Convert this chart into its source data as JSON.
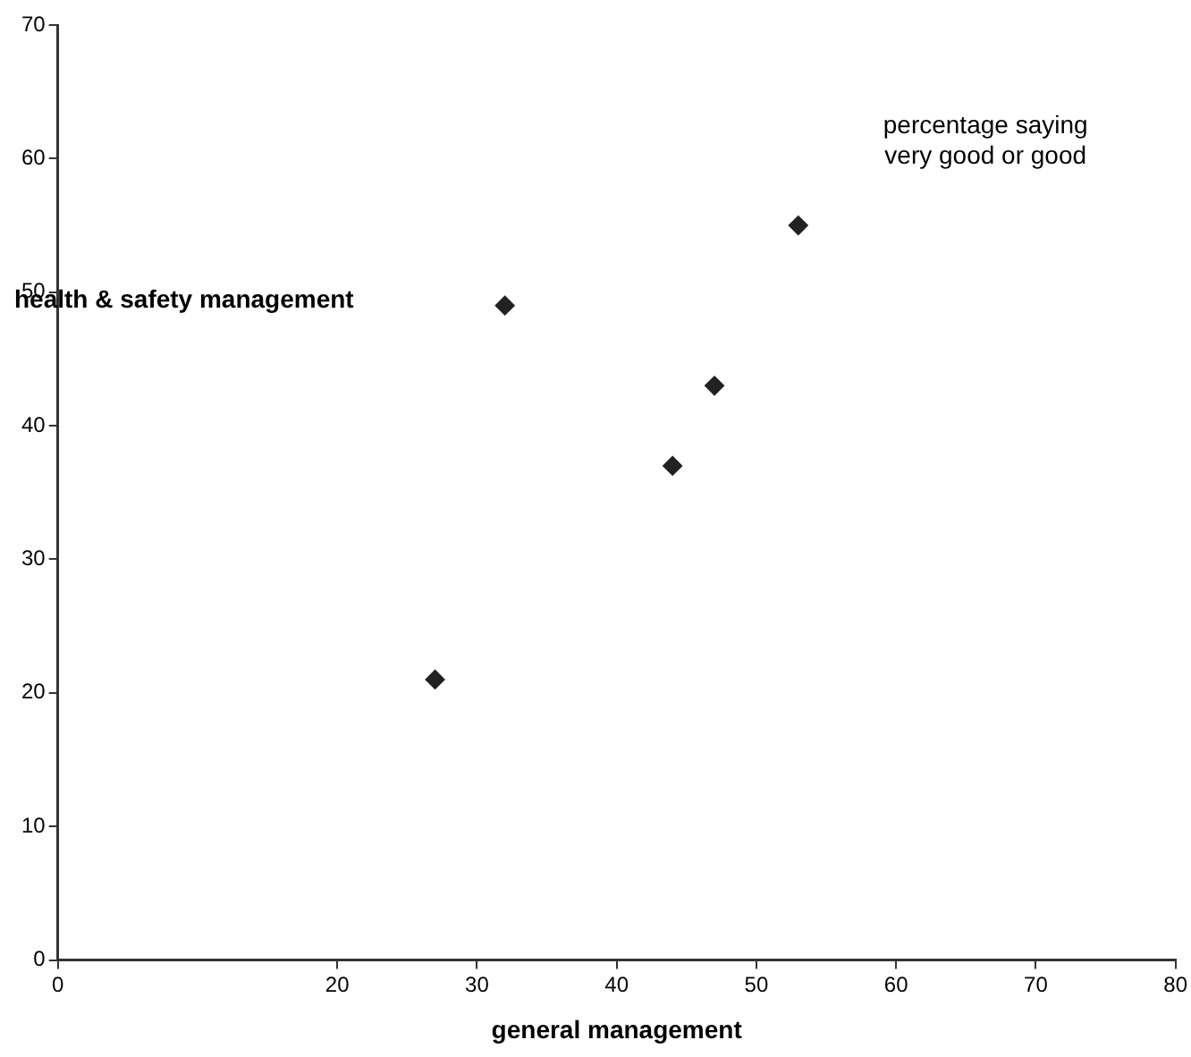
{
  "chart_data": {
    "type": "scatter",
    "xlabel": "general management",
    "ylabel": "health & safety management",
    "annotations": [
      "percentage saying\nvery good or good"
    ],
    "series": [
      {
        "color": "#222222",
        "x": [
          27,
          32,
          44,
          47,
          53
        ],
        "values": [
          21,
          49,
          37,
          43,
          55
        ]
      }
    ],
    "xlim": [
      0,
      80
    ],
    "xticks": [
      0,
      20,
      30,
      40,
      50,
      60,
      70,
      80
    ],
    "ylim": [
      0,
      70
    ],
    "yticks": [
      0,
      10,
      20,
      30,
      40,
      50,
      60,
      70
    ],
    "grid": false,
    "legend": false,
    "marker": "diamond"
  }
}
